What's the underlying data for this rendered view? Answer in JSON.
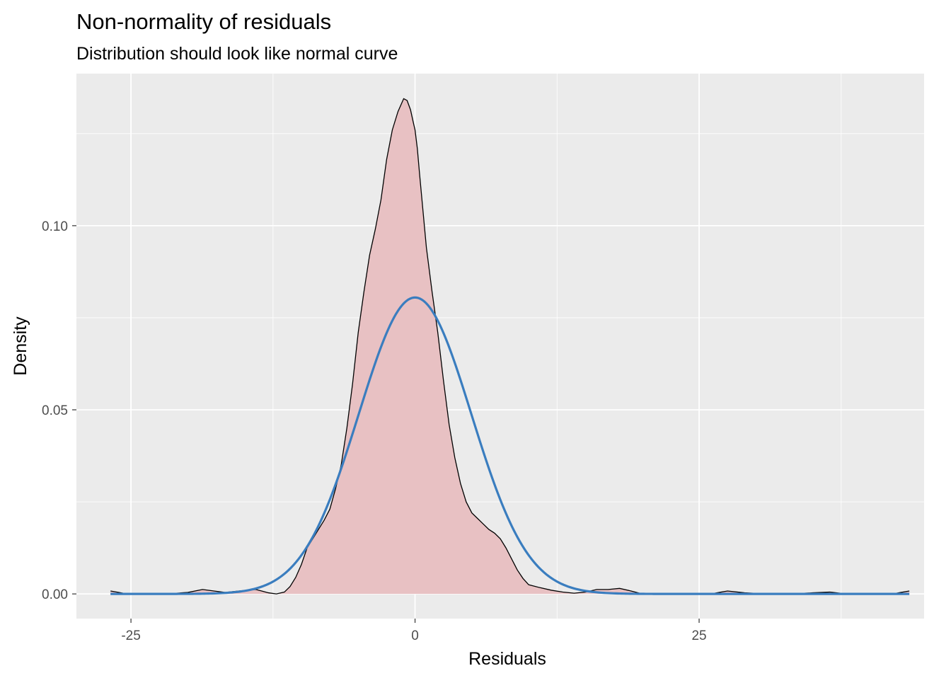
{
  "chart_data": {
    "type": "area",
    "title": "Non-normality of residuals",
    "subtitle": "Distribution should look like normal curve",
    "xlabel": "Residuals",
    "ylabel": "Density",
    "xlim": [
      -29.8,
      44.8
    ],
    "ylim": [
      -0.0067,
      0.1413
    ],
    "x_ticks": [
      -25,
      0,
      25
    ],
    "x_tick_labels": [
      "-25",
      "0",
      "25"
    ],
    "y_ticks": [
      0.0,
      0.05,
      0.1
    ],
    "y_tick_labels": [
      "0.00",
      "0.05",
      "0.10"
    ],
    "grid": true,
    "colors": {
      "panel_background": "#ebebeb",
      "grid": "#ffffff",
      "density_fill": "#e8c1c3",
      "density_line": "#000000",
      "normal_line": "#3a7dbf"
    },
    "series": [
      {
        "kind": "density",
        "x": [
          -26.8,
          -25.5,
          -24,
          -22,
          -20,
          -18.7,
          -17.7,
          -16.7,
          -15.5,
          -14,
          -13.5,
          -12.9,
          -12.2,
          -11.5,
          -11,
          -10.5,
          -10,
          -9.5,
          -9,
          -8.5,
          -8,
          -7.5,
          -7,
          -6.5,
          -6,
          -5.5,
          -5,
          -4.5,
          -4,
          -3.5,
          -3,
          -2.5,
          -2,
          -1.5,
          -1,
          -0.7,
          -0.4,
          -0.15,
          0,
          0.2,
          0.4,
          0.7,
          1,
          1.5,
          2,
          2.5,
          3,
          3.5,
          4,
          4.5,
          5,
          5.5,
          6,
          6.5,
          7,
          7.5,
          8,
          8.5,
          9,
          9.5,
          10,
          11,
          12,
          13,
          14,
          15,
          16,
          17,
          18,
          19,
          20,
          22,
          24,
          26,
          27.5,
          29,
          31,
          33,
          35,
          36.5,
          38,
          40,
          42,
          43.5
        ],
        "y": [
          0.0008,
          0.0001,
          0.0,
          0.0,
          0.0004,
          0.0012,
          0.0008,
          0.0004,
          0.0008,
          0.0012,
          0.0008,
          0.0003,
          0.0,
          0.0005,
          0.002,
          0.0045,
          0.008,
          0.0125,
          0.015,
          0.0175,
          0.02,
          0.023,
          0.0285,
          0.035,
          0.045,
          0.057,
          0.071,
          0.082,
          0.092,
          0.099,
          0.107,
          0.118,
          0.126,
          0.131,
          0.1345,
          0.134,
          0.1315,
          0.128,
          0.126,
          0.121,
          0.114,
          0.104,
          0.094,
          0.082,
          0.071,
          0.058,
          0.046,
          0.037,
          0.03,
          0.025,
          0.022,
          0.0205,
          0.019,
          0.0175,
          0.0165,
          0.015,
          0.0125,
          0.0095,
          0.0065,
          0.0042,
          0.0025,
          0.0017,
          0.001,
          0.0005,
          0.0002,
          0.0005,
          0.0012,
          0.0012,
          0.0015,
          0.0008,
          0.0,
          0.0,
          0.0,
          0.0,
          0.0008,
          0.0003,
          0.0,
          0.0,
          0.0003,
          0.0005,
          0.0,
          0.0,
          0.0,
          0.0008
        ]
      },
      {
        "kind": "normal",
        "mean": 0,
        "peak_density": 0.0805,
        "x_range": [
          -26.8,
          43.5
        ]
      }
    ]
  }
}
